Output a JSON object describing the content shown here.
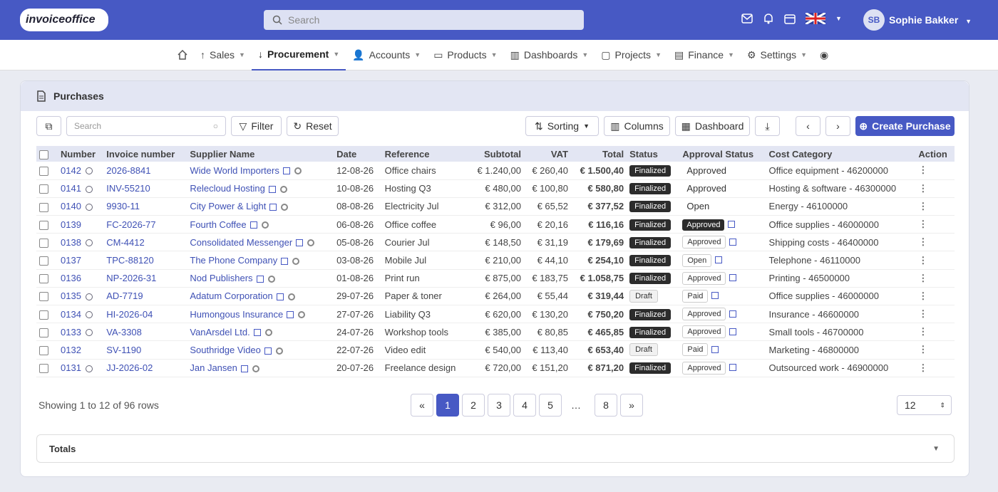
{
  "header": {
    "logo": "invoiceoffice",
    "search_placeholder": "Search",
    "user_initials": "SB",
    "user_name": "Sophie Bakker"
  },
  "nav": [
    {
      "label": "Sales"
    },
    {
      "label": "Procurement"
    },
    {
      "label": "Accounts"
    },
    {
      "label": "Products"
    },
    {
      "label": "Dashboards"
    },
    {
      "label": "Projects"
    },
    {
      "label": "Finance"
    },
    {
      "label": "Settings"
    }
  ],
  "page": {
    "title": "Purchases",
    "search_placeholder": "Search",
    "filter": "Filter",
    "reset": "Reset",
    "sorting": "Sorting",
    "columns": "Columns",
    "dashboard": "Dashboard",
    "create": "Create Purchase"
  },
  "table": {
    "headers": [
      "Number",
      "Invoice number",
      "Supplier Name",
      "Date",
      "Reference",
      "Subtotal",
      "VAT",
      "Total",
      "Status",
      "Approval Status",
      "Cost Category",
      "Action"
    ],
    "rows": [
      {
        "num": "0142",
        "sync": true,
        "inv": "2026-8841",
        "supplier": "Wide World Importers",
        "date": "12-08-26",
        "ref": "Office chairs",
        "sub": "€ 1.240,00",
        "vat": "€ 260,40",
        "total": "€ 1.500,40",
        "status": "Finalized",
        "appr": "Approved",
        "appr_style": "plain",
        "cat": "Office equipment - 46200000"
      },
      {
        "num": "0141",
        "sync": true,
        "inv": "INV-55210",
        "supplier": "Relecloud Hosting",
        "date": "10-08-26",
        "ref": "Hosting Q3",
        "sub": "€ 480,00",
        "vat": "€ 100,80",
        "total": "€ 580,80",
        "status": "Finalized",
        "appr": "Approved",
        "appr_style": "plain",
        "cat": "Hosting & software - 46300000"
      },
      {
        "num": "0140",
        "sync": true,
        "inv": "9930-11",
        "supplier": "City Power & Light",
        "date": "08-08-26",
        "ref": "Electricity Jul",
        "sub": "€ 312,00",
        "vat": "€ 65,52",
        "total": "€ 377,52",
        "status": "Finalized",
        "appr": "Open",
        "appr_style": "plain",
        "cat": "Energy - 46100000"
      },
      {
        "num": "0139",
        "sync": false,
        "inv": "FC-2026-77",
        "supplier": "Fourth Coffee",
        "date": "06-08-26",
        "ref": "Office coffee",
        "sub": "€ 96,00",
        "vat": "€ 20,16",
        "total": "€ 116,16",
        "status": "Finalized",
        "appr": "Approved",
        "appr_style": "dark",
        "cat": "Office supplies - 46000000"
      },
      {
        "num": "0138",
        "sync": true,
        "inv": "CM-4412",
        "supplier": "Consolidated Messenger",
        "date": "05-08-26",
        "ref": "Courier Jul",
        "sub": "€ 148,50",
        "vat": "€ 31,19",
        "total": "€ 179,69",
        "status": "Finalized",
        "appr": "Approved",
        "appr_style": "box",
        "cat": "Shipping costs - 46400000"
      },
      {
        "num": "0137",
        "sync": false,
        "inv": "TPC-88120",
        "supplier": "The Phone Company",
        "date": "03-08-26",
        "ref": "Mobile Jul",
        "sub": "€ 210,00",
        "vat": "€ 44,10",
        "total": "€ 254,10",
        "status": "Finalized",
        "appr": "Open",
        "appr_style": "box",
        "cat": "Telephone - 46110000"
      },
      {
        "num": "0136",
        "sync": false,
        "inv": "NP-2026-31",
        "supplier": "Nod Publishers",
        "date": "01-08-26",
        "ref": "Print run",
        "sub": "€ 875,00",
        "vat": "€ 183,75",
        "total": "€ 1.058,75",
        "status": "Finalized",
        "appr": "Approved",
        "appr_style": "box",
        "cat": "Printing - 46500000"
      },
      {
        "num": "0135",
        "sync": true,
        "inv": "AD-7719",
        "supplier": "Adatum Corporation",
        "date": "29-07-26",
        "ref": "Paper & toner",
        "sub": "€ 264,00",
        "vat": "€ 55,44",
        "total": "€ 319,44",
        "status": "Draft",
        "appr": "Paid",
        "appr_style": "box",
        "cat": "Office supplies - 46000000"
      },
      {
        "num": "0134",
        "sync": true,
        "inv": "HI-2026-04",
        "supplier": "Humongous Insurance",
        "date": "27-07-26",
        "ref": "Liability Q3",
        "sub": "€ 620,00",
        "vat": "€ 130,20",
        "total": "€ 750,20",
        "status": "Finalized",
        "appr": "Approved",
        "appr_style": "box",
        "cat": "Insurance - 46600000"
      },
      {
        "num": "0133",
        "sync": true,
        "inv": "VA-3308",
        "supplier": "VanArsdel Ltd.",
        "date": "24-07-26",
        "ref": "Workshop tools",
        "sub": "€ 385,00",
        "vat": "€ 80,85",
        "total": "€ 465,85",
        "status": "Finalized",
        "appr": "Approved",
        "appr_style": "box",
        "cat": "Small tools - 46700000"
      },
      {
        "num": "0132",
        "sync": false,
        "inv": "SV-1190",
        "supplier": "Southridge Video",
        "date": "22-07-26",
        "ref": "Video edit",
        "sub": "€ 540,00",
        "vat": "€ 113,40",
        "total": "€ 653,40",
        "status": "Draft",
        "appr": "Paid",
        "appr_style": "box",
        "cat": "Marketing - 46800000"
      },
      {
        "num": "0131",
        "sync": true,
        "inv": "JJ-2026-02",
        "supplier": "Jan Jansen",
        "date": "20-07-26",
        "ref": "Freelance design",
        "sub": "€ 720,00",
        "vat": "€ 151,20",
        "total": "€ 871,20",
        "status": "Finalized",
        "appr": "Approved",
        "appr_style": "box",
        "cat": "Outsourced work - 46900000"
      }
    ]
  },
  "footer": {
    "showing": "Showing 1 to 12 of 96 rows",
    "pages": [
      "«",
      "1",
      "2",
      "3",
      "4",
      "5",
      "…",
      "8",
      "»"
    ],
    "active_page": "1",
    "page_size": "12",
    "totals": "Totals"
  }
}
